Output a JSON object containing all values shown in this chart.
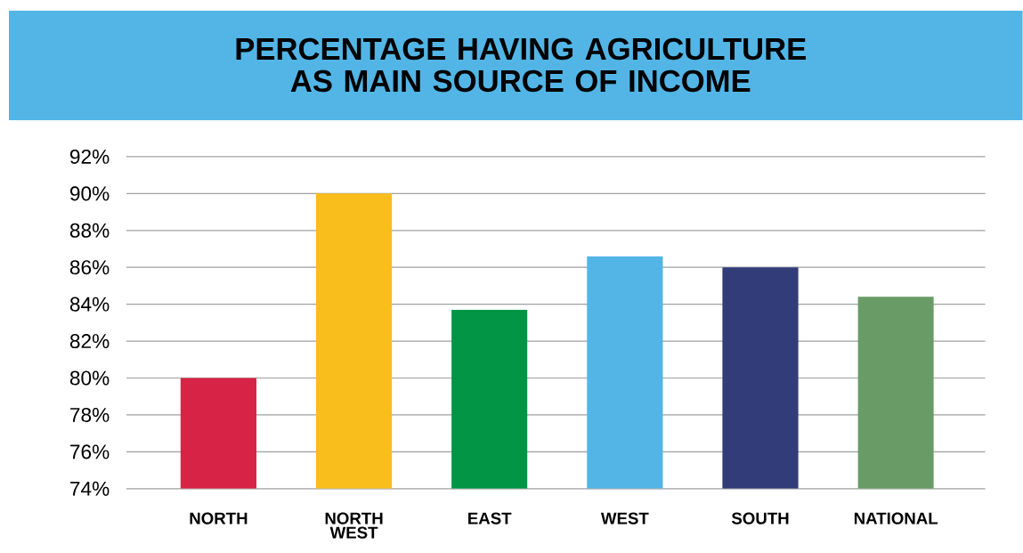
{
  "chart_data": {
    "type": "bar",
    "title": "PERCENTAGE HAVING AGRICULTURE AS MAIN SOURCE OF INCOME",
    "categories": [
      "NORTH",
      "NORTH WEST",
      "EAST",
      "WEST",
      "SOUTH",
      "NATIONAL"
    ],
    "values": [
      80,
      90,
      83.7,
      86.6,
      86.0,
      84.4
    ],
    "colors": [
      "#d72446",
      "#f9bd1c",
      "#019545",
      "#52b5e6",
      "#323c78",
      "#689b65"
    ],
    "ylim": [
      74,
      92
    ],
    "yticks": [
      {
        "value": 74,
        "label": "74%"
      },
      {
        "value": 76,
        "label": "76%"
      },
      {
        "value": 78,
        "label": "78%"
      },
      {
        "value": 80,
        "label": "80%"
      },
      {
        "value": 82,
        "label": "82%"
      },
      {
        "value": 84,
        "label": "84%"
      },
      {
        "value": 86,
        "label": "86%"
      },
      {
        "value": 88,
        "label": "88%"
      },
      {
        "value": 90,
        "label": "90%"
      },
      {
        "value": 92,
        "label": "92%"
      }
    ],
    "grid": "y"
  }
}
